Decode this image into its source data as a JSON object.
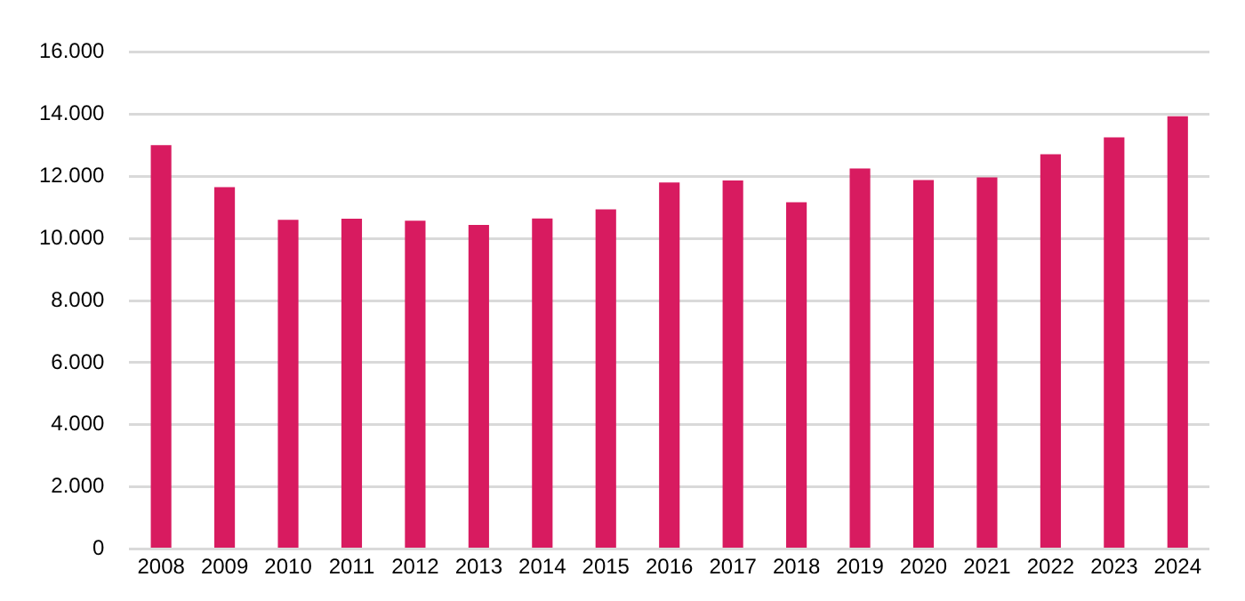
{
  "chart_data": {
    "type": "bar",
    "categories": [
      "2008",
      "2009",
      "2010",
      "2011",
      "2012",
      "2013",
      "2014",
      "2015",
      "2016",
      "2017",
      "2018",
      "2019",
      "2020",
      "2021",
      "2022",
      "2023",
      "2024"
    ],
    "values": [
      13000,
      11650,
      10600,
      10630,
      10570,
      10430,
      10640,
      10930,
      11800,
      11860,
      11160,
      12250,
      11880,
      11960,
      12710,
      13250,
      13930
    ],
    "color": "#d81b60",
    "ylim": [
      0,
      16000
    ],
    "yticks": [
      {
        "value": 0,
        "label": "0"
      },
      {
        "value": 2000,
        "label": "2.000"
      },
      {
        "value": 4000,
        "label": "4.000"
      },
      {
        "value": 6000,
        "label": "6.000"
      },
      {
        "value": 8000,
        "label": "8.000"
      },
      {
        "value": 10000,
        "label": "10.000"
      },
      {
        "value": 12000,
        "label": "12.000"
      },
      {
        "value": 14000,
        "label": "14.000"
      },
      {
        "value": 16000,
        "label": "16.000"
      }
    ],
    "grid": "y"
  }
}
